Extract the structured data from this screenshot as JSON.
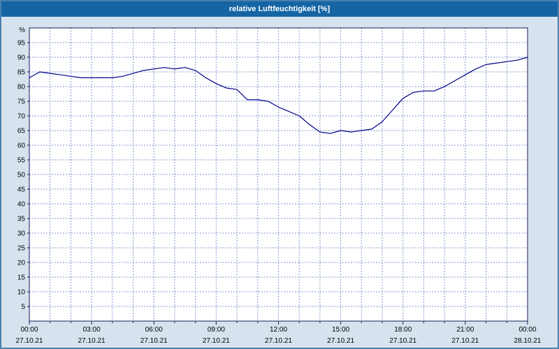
{
  "window": {
    "title": "relative Luftfeuchtigkeit [%]"
  },
  "colors": {
    "titlebar_bg": "#1565a4",
    "titlebar_text": "#ffffff",
    "window_border": "#4a80ad",
    "window_bg": "#d6e3ee"
  },
  "chart_data": {
    "type": "line",
    "title": "relative Luftfeuchtigkeit [%]",
    "unit_label": "%",
    "line_color": "#00008b",
    "grid_color": "#7e96cf",
    "axis_color": "#1a1a5a",
    "plot_bg": "#ffffff",
    "grid": "dashed",
    "legend": "none",
    "xlim": [
      0,
      24
    ],
    "ylim": [
      0,
      100
    ],
    "y_ticks": [
      5,
      10,
      15,
      20,
      25,
      30,
      35,
      40,
      45,
      50,
      55,
      60,
      65,
      70,
      75,
      80,
      85,
      90,
      95
    ],
    "x_minor_step_hours": 1,
    "x_major_ticks": [
      {
        "hour": 0,
        "time": "00:00",
        "date": "27.10.21"
      },
      {
        "hour": 3,
        "time": "03:00",
        "date": "27.10.21"
      },
      {
        "hour": 6,
        "time": "06:00",
        "date": "27.10.21"
      },
      {
        "hour": 9,
        "time": "09:00",
        "date": "27.10.21"
      },
      {
        "hour": 12,
        "time": "12:00",
        "date": "27.10.21"
      },
      {
        "hour": 15,
        "time": "15:00",
        "date": "27.10.21"
      },
      {
        "hour": 18,
        "time": "18:00",
        "date": "27.10.21"
      },
      {
        "hour": 21,
        "time": "21:00",
        "date": "27.10.21"
      },
      {
        "hour": 24,
        "time": "00:00",
        "date": "28.10.21"
      }
    ],
    "x_hours": [
      0,
      0.5,
      1,
      1.5,
      2,
      2.5,
      3,
      3.5,
      4,
      4.5,
      5,
      5.5,
      6,
      6.5,
      7,
      7.5,
      8,
      8.5,
      9,
      9.5,
      10,
      10.5,
      11,
      11.5,
      12,
      12.5,
      13,
      13.5,
      14,
      14.5,
      15,
      15.5,
      16,
      16.5,
      17,
      17.5,
      18,
      18.5,
      19,
      19.5,
      20,
      20.5,
      21,
      21.5,
      22,
      22.5,
      23,
      23.5,
      24
    ],
    "values": [
      83,
      85,
      84.5,
      84,
      83.5,
      83,
      83,
      83,
      83,
      83.5,
      84.5,
      85.5,
      86,
      86.5,
      86,
      86.5,
      85.5,
      83,
      81,
      79.5,
      79,
      75.5,
      75.5,
      75,
      73,
      71.5,
      70,
      67,
      64.5,
      64,
      65,
      64.5,
      65,
      65.5,
      68,
      72,
      76,
      78,
      78.5,
      78.5,
      80,
      82,
      84,
      86,
      87.5,
      88,
      88.5,
      89,
      90
    ]
  }
}
